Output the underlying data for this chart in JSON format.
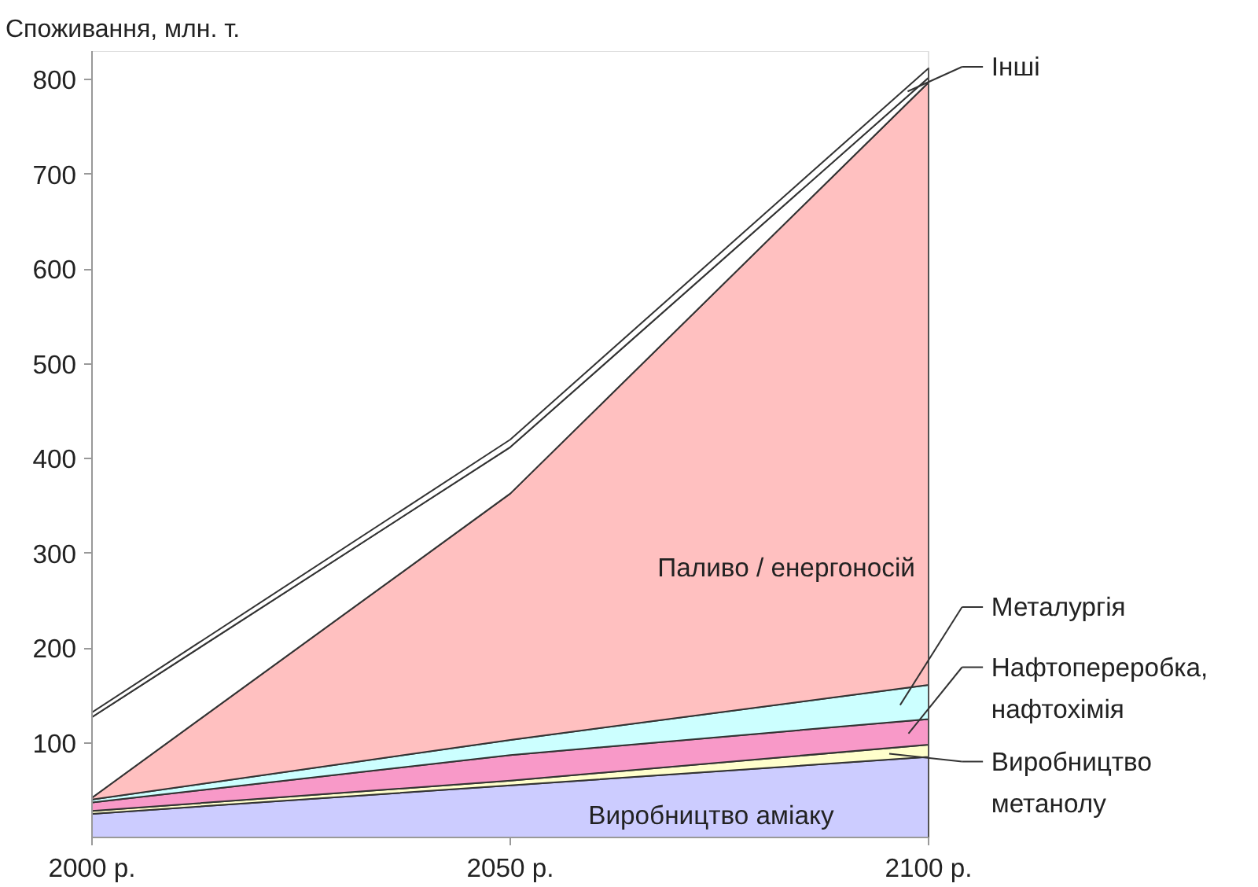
{
  "chart_data": {
    "type": "area",
    "stacked": true,
    "ylabel": "Споживання, млн. т.",
    "x": [
      2000,
      2050,
      2100
    ],
    "xlim": [
      2000,
      2100
    ],
    "xticks": [
      {
        "value": 2000,
        "label": "2000 р."
      },
      {
        "value": 2050,
        "label": "2050 р."
      },
      {
        "value": 2100,
        "label": "2100 р."
      }
    ],
    "ylim": [
      0,
      830
    ],
    "yticks": [
      100,
      200,
      300,
      400,
      500,
      600,
      700,
      800
    ],
    "grid": false,
    "legend": "right",
    "series": [
      {
        "name": "Виробництво аміаку",
        "color": "#ccccff",
        "values": [
          25,
          55,
          85
        ]
      },
      {
        "name": "Виробництво метанолу",
        "color": "#ffffcc",
        "values": [
          3,
          5,
          13
        ]
      },
      {
        "name": "Нафтопереробка, нафтохімія",
        "color": "#f899c8",
        "values": [
          9,
          27,
          27
        ]
      },
      {
        "name": "Металургія",
        "color": "#ccffff",
        "values": [
          3,
          16,
          36
        ]
      },
      {
        "name": "Паливо / енергоносій",
        "color": "#ffc0c0",
        "values": [
          2,
          260,
          636
        ]
      },
      {
        "color": "#ffffff",
        "values": [
          85,
          49,
          5
        ]
      },
      {
        "name": "Інші",
        "color": "#ffffff",
        "values": [
          5,
          8,
          10
        ]
      }
    ]
  }
}
